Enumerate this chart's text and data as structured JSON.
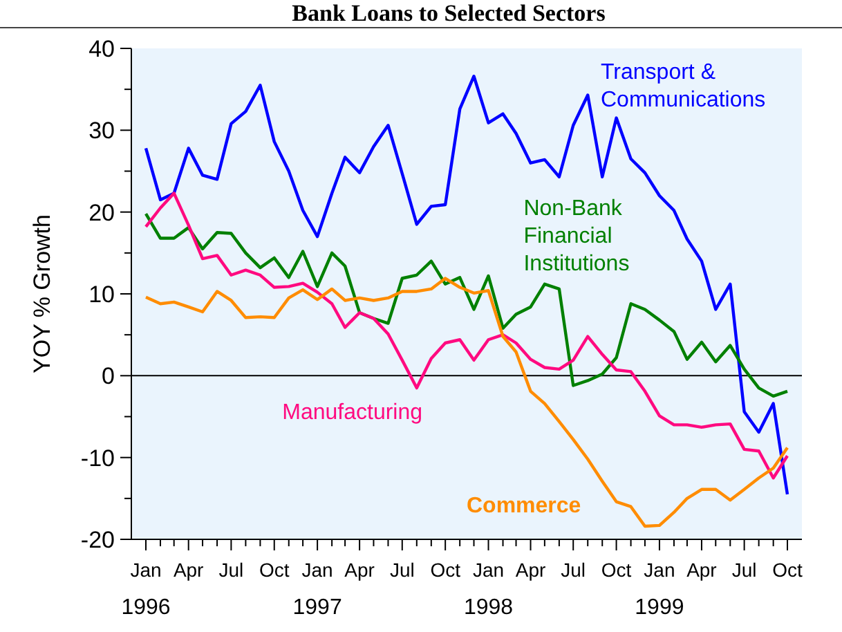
{
  "chart_data": {
    "type": "line",
    "title": "Bank Loans to Selected Sectors",
    "ylabel": "YOY % Growth",
    "x": [
      "1996-01",
      "1996-02",
      "1996-03",
      "1996-04",
      "1996-05",
      "1996-06",
      "1996-07",
      "1996-08",
      "1996-09",
      "1996-10",
      "1996-11",
      "1996-12",
      "1997-01",
      "1997-02",
      "1997-03",
      "1997-04",
      "1997-05",
      "1997-06",
      "1997-07",
      "1997-08",
      "1997-09",
      "1997-10",
      "1997-11",
      "1997-12",
      "1998-01",
      "1998-02",
      "1998-03",
      "1998-04",
      "1998-05",
      "1998-06",
      "1998-07",
      "1998-08",
      "1998-09",
      "1998-10",
      "1998-11",
      "1998-12",
      "1999-01",
      "1999-02",
      "1999-03",
      "1999-04",
      "1999-05",
      "1999-06",
      "1999-07",
      "1999-08",
      "1999-09",
      "1999-10"
    ],
    "series": [
      {
        "name": "Transport & Communications",
        "color": "#0000ff",
        "values": [
          27.8,
          21.5,
          22.3,
          27.8,
          24.5,
          24,
          30.8,
          32.3,
          35.5,
          28.6,
          25,
          20.2,
          17,
          22.3,
          26.7,
          24.8,
          28,
          30.6,
          24.7,
          18.5,
          20.7,
          20.9,
          32.6,
          36.6,
          30.9,
          32,
          29.6,
          26,
          26.4,
          24.3,
          30.6,
          34.3,
          24.3,
          31.5,
          26.5,
          24.8,
          22,
          20.2,
          16.7,
          14,
          8.1,
          11.2,
          -4.4,
          -6.9,
          -3.4,
          -14.5
        ]
      },
      {
        "name": "Non-Bank Financial Institutions",
        "color": "#008000",
        "values": [
          19.8,
          16.8,
          16.8,
          18.1,
          15.5,
          17.5,
          17.4,
          15,
          13.2,
          14.4,
          12,
          15.2,
          10.9,
          15,
          13.4,
          7.7,
          7,
          6.4,
          11.9,
          12.3,
          14,
          11.2,
          12,
          8.1,
          12.2,
          5.8,
          7.5,
          8.4,
          11.2,
          10.6,
          -1.2,
          -0.6,
          0.2,
          2.2,
          8.8,
          8.1,
          6.8,
          5.4,
          2,
          4.1,
          1.7,
          3.7,
          0.8,
          -1.5,
          -2.5,
          -1.9
        ]
      },
      {
        "name": "Manufacturing",
        "color": "#ff0a80",
        "values": [
          18.2,
          20.5,
          22.3,
          18.4,
          14.3,
          14.7,
          12.3,
          12.9,
          12.3,
          10.8,
          10.9,
          11.3,
          10.2,
          8.8,
          5.9,
          7.7,
          7,
          5.1,
          1.9,
          -1.5,
          2.1,
          4,
          4.4,
          1.9,
          4.4,
          5,
          4,
          2,
          1,
          0.8,
          1.9,
          4.8,
          2.6,
          0.7,
          0.5,
          -1.9,
          -4.9,
          -6,
          -6,
          -6.3,
          -6,
          -5.9,
          -9,
          -9.2,
          -12.5,
          -9.8
        ]
      },
      {
        "name": "Commerce",
        "color": "#ff8c00",
        "values": [
          9.6,
          8.8,
          9,
          8.4,
          7.8,
          10.3,
          9.2,
          7.1,
          7.2,
          7.1,
          9.5,
          10.5,
          9.3,
          10.6,
          9.2,
          9.5,
          9.2,
          9.5,
          10.3,
          10.3,
          10.6,
          11.9,
          10.8,
          10.1,
          10.4,
          4.8,
          2.9,
          -1.9,
          -3.4,
          -5.6,
          -7.8,
          -10.2,
          -12.9,
          -15.4,
          -16,
          -18.4,
          -18.3,
          -16.7,
          -15,
          -13.9,
          -13.9,
          -15.2,
          -13.9,
          -12.5,
          -11.3,
          -8.8
        ]
      }
    ],
    "xlim": [
      "1995-12",
      "1999-11"
    ],
    "xticks": [
      {
        "value": "1996-01",
        "label": "Jan 1996"
      },
      {
        "value": "1996-02",
        "label": null
      },
      {
        "value": "1996-03",
        "label": null
      },
      {
        "value": "1996-04",
        "label": "Apr"
      },
      {
        "value": "1996-05",
        "label": null
      },
      {
        "value": "1996-06",
        "label": null
      },
      {
        "value": "1996-07",
        "label": "Jul"
      },
      {
        "value": "1996-08",
        "label": null
      },
      {
        "value": "1996-09",
        "label": null
      },
      {
        "value": "1996-10",
        "label": "Oct"
      },
      {
        "value": "1996-11",
        "label": null
      },
      {
        "value": "1996-12",
        "label": null
      },
      {
        "value": "1997-01",
        "label": "Jan 1997"
      },
      {
        "value": "1997-02",
        "label": null
      },
      {
        "value": "1997-03",
        "label": null
      },
      {
        "value": "1997-04",
        "label": "Apr"
      },
      {
        "value": "1997-05",
        "label": null
      },
      {
        "value": "1997-06",
        "label": null
      },
      {
        "value": "1997-07",
        "label": "Jul"
      },
      {
        "value": "1997-08",
        "label": null
      },
      {
        "value": "1997-09",
        "label": null
      },
      {
        "value": "1997-10",
        "label": "Oct"
      },
      {
        "value": "1997-11",
        "label": null
      },
      {
        "value": "1997-12",
        "label": null
      },
      {
        "value": "1998-01",
        "label": "Jan 1998"
      },
      {
        "value": "1998-02",
        "label": null
      },
      {
        "value": "1998-03",
        "label": null
      },
      {
        "value": "1998-04",
        "label": "Apr"
      },
      {
        "value": "1998-05",
        "label": null
      },
      {
        "value": "1998-06",
        "label": null
      },
      {
        "value": "1998-07",
        "label": "Jul"
      },
      {
        "value": "1998-08",
        "label": null
      },
      {
        "value": "1998-09",
        "label": null
      },
      {
        "value": "1998-10",
        "label": "Oct"
      },
      {
        "value": "1998-11",
        "label": null
      },
      {
        "value": "1998-12",
        "label": null
      },
      {
        "value": "1999-01",
        "label": "Jan 1999"
      },
      {
        "value": "1999-02",
        "label": null
      },
      {
        "value": "1999-03",
        "label": null
      },
      {
        "value": "1999-04",
        "label": "Apr"
      },
      {
        "value": "1999-05",
        "label": null
      },
      {
        "value": "1999-06",
        "label": null
      },
      {
        "value": "1999-07",
        "label": "Jul"
      },
      {
        "value": "1999-08",
        "label": null
      },
      {
        "value": "1999-09",
        "label": null
      },
      {
        "value": "1999-10",
        "label": "Oct"
      }
    ],
    "ylim": [
      -20,
      40
    ],
    "yticks": [
      -20,
      {
        "value": -15,
        "label": null
      },
      -10,
      {
        "value": -5,
        "label": null
      },
      0,
      {
        "value": 5,
        "label": null
      },
      10,
      {
        "value": 15,
        "label": null
      },
      20,
      {
        "value": 25,
        "label": null
      },
      30,
      {
        "value": 35,
        "label": null
      },
      40
    ],
    "ref_lines": [
      {
        "axis": "y",
        "value": 0,
        "color": "#000000"
      }
    ],
    "grid": false,
    "legend": false,
    "marker": "none",
    "line_style": "solid"
  }
}
